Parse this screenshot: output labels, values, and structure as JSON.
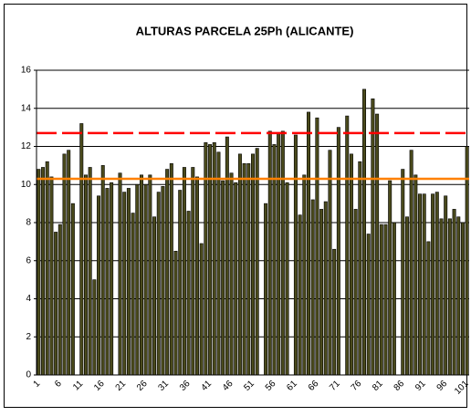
{
  "chart_data": {
    "type": "bar",
    "title": "ALTURAS PARCELA 25Ph (ALICANTE)",
    "categories": [
      "1",
      null,
      null,
      null,
      null,
      "6",
      null,
      null,
      null,
      null,
      "11",
      null,
      null,
      null,
      null,
      "16",
      null,
      null,
      null,
      null,
      "21",
      null,
      null,
      null,
      null,
      "26",
      null,
      null,
      null,
      null,
      "31",
      null,
      null,
      null,
      null,
      "36",
      null,
      null,
      null,
      null,
      "41",
      null,
      null,
      null,
      null,
      "46",
      null,
      null,
      null,
      null,
      "51",
      null,
      null,
      null,
      null,
      "56",
      null,
      null,
      null,
      null,
      "61",
      null,
      null,
      null,
      null,
      "66",
      null,
      null,
      null,
      null,
      "71",
      null,
      null,
      null,
      null,
      "76",
      null,
      null,
      null,
      null,
      "81",
      null,
      null,
      null,
      null,
      "86",
      null,
      null,
      null,
      null,
      "91",
      null,
      null,
      null,
      null,
      "96",
      null,
      null,
      null,
      null,
      "101"
    ],
    "values": [
      10.8,
      10.9,
      11.2,
      10.4,
      7.5,
      7.9,
      11.6,
      11.8,
      9.0,
      null,
      13.2,
      10.5,
      10.9,
      5.0,
      9.4,
      11.0,
      9.8,
      10.1,
      null,
      10.6,
      9.6,
      9.8,
      8.5,
      10.0,
      10.5,
      10.0,
      10.5,
      8.3,
      9.6,
      9.9,
      10.8,
      11.1,
      6.5,
      9.7,
      10.9,
      8.6,
      10.9,
      10.4,
      6.9,
      12.2,
      12.1,
      12.2,
      11.7,
      10.2,
      12.5,
      10.6,
      10.1,
      11.6,
      11.1,
      11.1,
      11.6,
      11.9,
      null,
      9.0,
      12.8,
      12.1,
      12.7,
      12.8,
      10.1,
      null,
      12.6,
      8.4,
      10.5,
      13.8,
      9.2,
      13.5,
      8.7,
      9.1,
      11.8,
      6.6,
      13.0,
      null,
      13.6,
      11.6,
      8.7,
      11.2,
      15.0,
      7.4,
      14.5,
      13.7,
      7.9,
      7.9,
      10.2,
      8.0,
      null,
      10.8,
      8.3,
      11.8,
      10.5,
      9.5,
      9.5,
      7.0,
      9.5,
      9.6,
      8.2,
      9.4,
      8.2,
      8.7,
      8.3,
      8.0,
      12.0
    ],
    "color": "#4a4a1c",
    "ylim": [
      0,
      16
    ],
    "yticks": [
      0,
      2,
      4,
      6,
      8,
      10,
      12,
      14,
      16
    ],
    "grid": true,
    "reference_lines": [
      {
        "value": 12.7,
        "color": "#ff0000",
        "style": "dashed"
      },
      {
        "value": 10.3,
        "color": "#ff8000",
        "style": "solid"
      }
    ]
  }
}
